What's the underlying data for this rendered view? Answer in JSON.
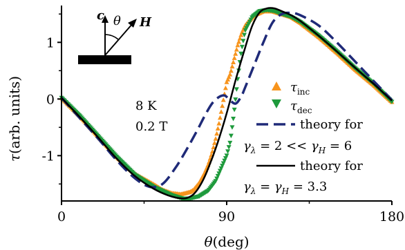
{
  "chart_data": {
    "type": "line",
    "xlabel_symbol": "θ",
    "xlabel_unit": "(deg)",
    "ylabel_symbol": "τ",
    "ylabel_unit": "(arb. units)",
    "xlim": [
      0,
      180
    ],
    "ylim": [
      -1.8,
      1.65
    ],
    "x_ticks": [
      0,
      90,
      180
    ],
    "x_tick_labels": [
      "0",
      "90",
      "180"
    ],
    "y_ticks": [
      -1,
      0,
      1
    ],
    "y_tick_labels": [
      "-1",
      "0",
      "1"
    ],
    "grid": false,
    "annotations": {
      "temperature": "8 K",
      "field": "0.2 T"
    },
    "inset": {
      "c_label": "c",
      "theta_label": "θ",
      "h_label": "H"
    },
    "legend": {
      "position": "right",
      "inc": {
        "symbol": "τ",
        "sub": "inc"
      },
      "dec": {
        "symbol": "τ",
        "sub": "dec"
      },
      "theory1": {
        "text": "theory for",
        "g1": "γ",
        "g1sub": "λ",
        "mid": " = 2 << ",
        "g2": "γ",
        "g2sub": "H",
        "end": " = 6"
      },
      "theory2": {
        "text": "theory for",
        "g1": "γ",
        "g1sub": "λ",
        "mid": " = ",
        "g2": "γ",
        "g2sub": "H",
        "end": " = 3.3"
      }
    },
    "series": [
      {
        "id": "inc",
        "style": "markers",
        "color": "#F7941D",
        "x": [
          0,
          10,
          20,
          30,
          40,
          50,
          55,
          60,
          65,
          70,
          72,
          75,
          78,
          80,
          82,
          84,
          86,
          88,
          90,
          92,
          94,
          96,
          98,
          100,
          105,
          110,
          115,
          120,
          125,
          130,
          140,
          150,
          160,
          170,
          180
        ],
        "y": [
          0.02,
          -0.3,
          -0.66,
          -1.02,
          -1.32,
          -1.5,
          -1.6,
          -1.66,
          -1.68,
          -1.64,
          -1.6,
          -1.48,
          -1.3,
          -1.15,
          -0.95,
          -0.7,
          -0.4,
          -0.05,
          0.3,
          0.45,
          0.7,
          0.95,
          1.15,
          1.3,
          1.48,
          1.55,
          1.55,
          1.5,
          1.45,
          1.35,
          1.1,
          0.82,
          0.52,
          0.25,
          -0.05
        ]
      },
      {
        "id": "dec",
        "style": "markers",
        "color": "#1E9A3C",
        "x": [
          0,
          10,
          20,
          30,
          40,
          50,
          60,
          66,
          70,
          75,
          80,
          84,
          88,
          90,
          92,
          94,
          95,
          96,
          98,
          100,
          104,
          108,
          112,
          116,
          120,
          125,
          130,
          140,
          150,
          160,
          170,
          180
        ],
        "y": [
          0.02,
          -0.3,
          -0.66,
          -1.02,
          -1.34,
          -1.55,
          -1.7,
          -1.76,
          -1.76,
          -1.72,
          -1.62,
          -1.45,
          -1.15,
          -1.0,
          -0.75,
          -0.25,
          0.05,
          0.35,
          0.85,
          1.2,
          1.45,
          1.55,
          1.57,
          1.55,
          1.5,
          1.45,
          1.36,
          1.12,
          0.84,
          0.54,
          0.27,
          -0.05
        ]
      },
      {
        "id": "theory1",
        "style": "dashed",
        "color": "#1F2A78",
        "x": [
          0,
          10,
          20,
          30,
          40,
          48,
          55,
          62,
          68,
          74,
          78,
          82,
          86,
          89,
          92,
          95,
          98,
          100,
          105,
          110,
          115,
          120,
          125,
          130,
          140,
          150,
          160,
          170,
          180
        ],
        "y": [
          0.02,
          -0.34,
          -0.7,
          -1.08,
          -1.4,
          -1.55,
          -1.5,
          -1.22,
          -0.9,
          -0.55,
          -0.3,
          -0.08,
          0.04,
          0.06,
          -0.03,
          -0.08,
          0.05,
          0.2,
          0.6,
          1.0,
          1.35,
          1.5,
          1.52,
          1.48,
          1.3,
          1.0,
          0.66,
          0.32,
          -0.02
        ]
      },
      {
        "id": "theory2",
        "style": "solid",
        "color": "#000000",
        "x": [
          0,
          10,
          20,
          30,
          40,
          50,
          58,
          64,
          68,
          72,
          76,
          80,
          85,
          90,
          95,
          100,
          104,
          108,
          112,
          116,
          120,
          125,
          130,
          140,
          150,
          160,
          170,
          180
        ],
        "y": [
          0.02,
          -0.32,
          -0.68,
          -1.05,
          -1.36,
          -1.58,
          -1.7,
          -1.75,
          -1.75,
          -1.68,
          -1.5,
          -1.22,
          -0.78,
          -0.25,
          0.35,
          0.9,
          1.3,
          1.53,
          1.6,
          1.6,
          1.55,
          1.48,
          1.38,
          1.12,
          0.84,
          0.55,
          0.27,
          -0.03
        ]
      }
    ]
  }
}
